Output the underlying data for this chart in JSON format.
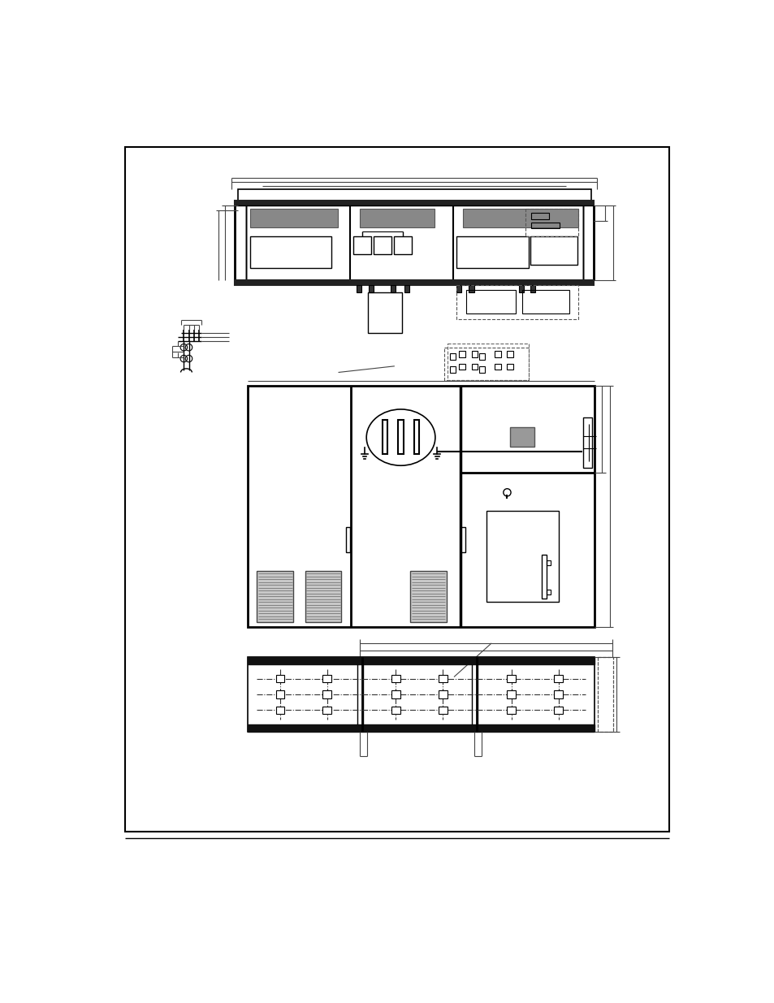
{
  "page_bg": "#ffffff",
  "line_color": "#000000",
  "gray_color": "#888888",
  "dark_gray": "#555555",
  "mid_gray": "#aaaaaa",
  "dim_color": "#444444"
}
